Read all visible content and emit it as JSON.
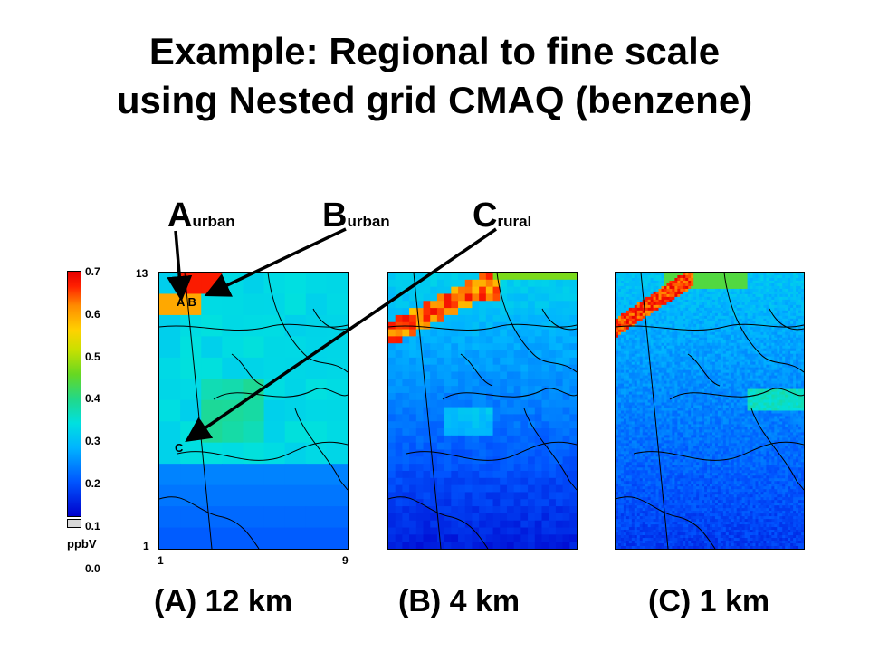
{
  "title": {
    "line1": "Example: Regional to fine scale",
    "line2": "using Nested grid CMAQ (benzene)"
  },
  "sites": [
    {
      "letter": "A",
      "type": "urban"
    },
    {
      "letter": "B",
      "type": "urban"
    },
    {
      "letter": "C",
      "type": "rural"
    }
  ],
  "map_point_labels": {
    "ab": "A B",
    "c": "C"
  },
  "colorbar": {
    "unit": "ppbV",
    "ticks": [
      "0.7",
      "0.6",
      "0.5",
      "0.4",
      "0.3",
      "0.2",
      "0.1",
      "0.0"
    ]
  },
  "grid_axis": {
    "y_top": "13",
    "y_bottom": "1",
    "x_left": "1",
    "x_right": "9"
  },
  "panels": [
    {
      "caption": "(A) 12 km"
    },
    {
      "caption": "(B) 4 km"
    },
    {
      "caption": "(C) 1 km"
    }
  ],
  "colors": {
    "high": "#e60000",
    "mid": "#22d888",
    "low": "#0055ff",
    "arrow": "#000000"
  }
}
